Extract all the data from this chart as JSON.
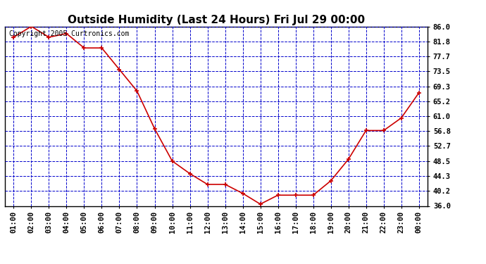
{
  "title": "Outside Humidity (Last 24 Hours) Fri Jul 29 00:00",
  "copyright": "Copyright 2005 Curtronics.com",
  "x_labels": [
    "01:00",
    "02:00",
    "03:00",
    "04:00",
    "05:00",
    "06:00",
    "07:00",
    "08:00",
    "09:00",
    "10:00",
    "11:00",
    "12:00",
    "13:00",
    "14:00",
    "15:00",
    "16:00",
    "17:00",
    "18:00",
    "19:00",
    "20:00",
    "21:00",
    "22:00",
    "23:00",
    "00:00"
  ],
  "y_values": [
    83.0,
    86.0,
    83.0,
    84.0,
    80.0,
    80.0,
    74.0,
    68.0,
    57.5,
    48.5,
    45.0,
    42.0,
    42.0,
    39.5,
    36.5,
    39.0,
    39.0,
    39.0,
    43.0,
    49.0,
    57.0,
    57.0,
    60.5,
    67.5
  ],
  "y_ticks": [
    36.0,
    40.2,
    44.3,
    48.5,
    52.7,
    56.8,
    61.0,
    65.2,
    69.3,
    73.5,
    77.7,
    81.8,
    86.0
  ],
  "y_min": 36.0,
  "y_max": 86.0,
  "line_color": "#cc0000",
  "marker_color": "#cc0000",
  "bg_color": "#ffffff",
  "plot_bg": "#ffffff",
  "grid_color": "#0000cc",
  "title_color": "#000000",
  "border_color": "#000000",
  "title_fontsize": 11,
  "tick_fontsize": 7.5,
  "copyright_fontsize": 7
}
